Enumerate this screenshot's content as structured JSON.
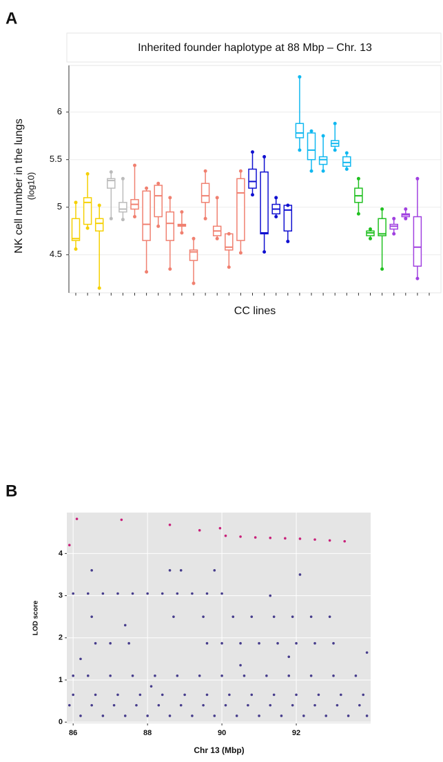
{
  "chart_data": [
    {
      "type": "box",
      "panel": "A",
      "title": "Inherited founder haplotype at 88 Mbp – Chr. 13",
      "ylabel": "NK cell number in the lungs",
      "ylabel2": "(log10)",
      "xlabel": "CC lines",
      "ylim": [
        4.1,
        6.49
      ],
      "yticks": [
        4.5,
        5,
        5.5,
        6
      ],
      "grid": true,
      "boxes": [
        {
          "color": "#f5d000",
          "low": 4.56,
          "q1": 4.65,
          "median": 4.67,
          "q3": 4.88,
          "high": 5.05
        },
        {
          "color": "#f5d000",
          "low": 4.78,
          "q1": 4.82,
          "median": 5.05,
          "q3": 5.1,
          "high": 5.35
        },
        {
          "color": "#f5d000",
          "low": 4.15,
          "q1": 4.75,
          "median": 4.83,
          "q3": 4.88,
          "high": 5.02
        },
        {
          "color": "#bbbbbb",
          "low": 4.88,
          "q1": 5.2,
          "median": 5.28,
          "q3": 5.3,
          "high": 5.37
        },
        {
          "color": "#bbbbbb",
          "low": 4.87,
          "q1": 4.95,
          "median": 4.98,
          "q3": 5.05,
          "high": 5.3
        },
        {
          "color": "#f08070",
          "low": 4.9,
          "q1": 4.98,
          "median": 5.03,
          "q3": 5.08,
          "high": 5.44
        },
        {
          "color": "#f08070",
          "low": 4.32,
          "q1": 4.65,
          "median": 4.82,
          "q3": 5.17,
          "high": 5.2
        },
        {
          "color": "#f08070",
          "low": 4.8,
          "q1": 4.9,
          "median": 5.12,
          "q3": 5.23,
          "high": 5.25
        },
        {
          "color": "#f08070",
          "low": 4.35,
          "q1": 4.65,
          "median": 4.83,
          "q3": 4.95,
          "high": 5.1
        },
        {
          "color": "#f08070",
          "low": 4.73,
          "q1": 4.8,
          "median": 4.81,
          "q3": 4.82,
          "high": 4.95
        },
        {
          "color": "#f08070",
          "low": 4.2,
          "q1": 4.44,
          "median": 4.53,
          "q3": 4.55,
          "high": 4.67
        },
        {
          "color": "#f08070",
          "low": 4.88,
          "q1": 5.05,
          "median": 5.12,
          "q3": 5.25,
          "high": 5.38
        },
        {
          "color": "#f08070",
          "low": 4.67,
          "q1": 4.7,
          "median": 4.75,
          "q3": 4.8,
          "high": 5.1
        },
        {
          "color": "#f08070",
          "low": 4.37,
          "q1": 4.55,
          "median": 4.58,
          "q3": 4.72,
          "high": 4.72
        },
        {
          "color": "#f08070",
          "low": 4.52,
          "q1": 4.65,
          "median": 5.15,
          "q3": 5.3,
          "high": 5.38
        },
        {
          "color": "#1010d0",
          "low": 5.13,
          "q1": 5.2,
          "median": 5.27,
          "q3": 5.4,
          "high": 5.58
        },
        {
          "color": "#1010d0",
          "low": 4.53,
          "q1": 4.72,
          "median": 4.73,
          "q3": 5.37,
          "high": 5.53
        },
        {
          "color": "#1010d0",
          "low": 4.9,
          "q1": 4.93,
          "median": 4.98,
          "q3": 5.03,
          "high": 5.1
        },
        {
          "color": "#1010d0",
          "low": 4.64,
          "q1": 4.75,
          "median": 4.97,
          "q3": 5.02,
          "high": 5.02
        },
        {
          "color": "#10b8f0",
          "low": 5.6,
          "q1": 5.73,
          "median": 5.78,
          "q3": 5.88,
          "high": 6.37
        },
        {
          "color": "#10b8f0",
          "low": 5.38,
          "q1": 5.5,
          "median": 5.6,
          "q3": 5.78,
          "high": 5.8
        },
        {
          "color": "#10b8f0",
          "low": 5.38,
          "q1": 5.45,
          "median": 5.5,
          "q3": 5.53,
          "high": 5.75
        },
        {
          "color": "#10b8f0",
          "low": 5.6,
          "q1": 5.64,
          "median": 5.67,
          "q3": 5.7,
          "high": 5.88
        },
        {
          "color": "#10b8f0",
          "low": 5.4,
          "q1": 5.43,
          "median": 5.47,
          "q3": 5.53,
          "high": 5.57
        },
        {
          "color": "#20c020",
          "low": 4.93,
          "q1": 5.05,
          "median": 5.12,
          "q3": 5.2,
          "high": 5.3
        },
        {
          "color": "#20c020",
          "low": 4.67,
          "q1": 4.7,
          "median": 4.73,
          "q3": 4.75,
          "high": 4.77
        },
        {
          "color": "#20c020",
          "low": 4.35,
          "q1": 4.7,
          "median": 4.72,
          "q3": 4.88,
          "high": 4.98
        },
        {
          "color": "#a040e0",
          "low": 4.72,
          "q1": 4.77,
          "median": 4.8,
          "q3": 4.82,
          "high": 4.88
        },
        {
          "color": "#a040e0",
          "low": 4.88,
          "q1": 4.9,
          "median": 4.92,
          "q3": 4.93,
          "high": 4.98
        },
        {
          "color": "#a040e0",
          "low": 4.25,
          "q1": 4.38,
          "median": 4.58,
          "q3": 4.9,
          "high": 5.3
        }
      ]
    },
    {
      "type": "scatter",
      "panel": "B",
      "xlabel": "Chr 13 (Mbp)",
      "ylabel": "LOD score",
      "xlim": [
        85.83,
        94
      ],
      "ylim": [
        -0.03,
        4.97
      ],
      "xticks": [
        86,
        88,
        90,
        92
      ],
      "yticks": [
        0,
        1,
        2,
        3,
        4
      ],
      "grid": true,
      "series": [
        {
          "color": "#c8207a",
          "x": [
            85.9,
            86.1,
            87.3,
            88.6,
            89.4,
            89.95,
            90.1,
            90.5,
            90.9,
            91.3,
            91.7,
            92.1,
            92.5,
            92.9,
            93.3
          ],
          "y": [
            4.2,
            4.82,
            4.8,
            4.68,
            4.55,
            4.6,
            4.42,
            4.4,
            4.38,
            4.37,
            4.36,
            4.35,
            4.33,
            4.31,
            4.29
          ]
        },
        {
          "color": "#463c8c",
          "x": [
            86.0,
            86.4,
            86.8,
            87.2,
            87.6,
            88.0,
            88.4,
            88.8,
            89.2,
            89.6,
            90.0,
            86.5,
            88.6,
            88.9,
            89.8,
            86.5,
            88.7,
            89.5,
            90.3,
            90.8,
            91.4,
            91.9,
            92.4,
            92.9,
            86.6,
            87.0,
            87.5,
            89.6,
            90.0,
            90.5,
            91.0,
            91.5,
            92.0,
            92.5,
            93.0,
            86.0,
            86.4,
            87.0,
            87.6,
            88.2,
            88.8,
            89.4,
            90.0,
            90.6,
            91.2,
            91.8,
            92.4,
            93.0,
            93.6,
            86.0,
            86.6,
            87.2,
            87.8,
            88.4,
            89.0,
            89.6,
            90.2,
            90.8,
            91.4,
            92.0,
            92.6,
            93.2,
            93.8,
            85.9,
            86.5,
            87.1,
            87.7,
            88.3,
            88.9,
            89.5,
            90.1,
            90.7,
            91.3,
            91.9,
            92.5,
            93.1,
            93.7,
            86.2,
            86.8,
            87.4,
            88.0,
            88.6,
            89.2,
            89.8,
            90.4,
            91.0,
            91.6,
            92.2,
            92.8,
            93.4,
            93.9,
            87.4,
            92.1,
            91.3,
            93.9,
            86.2,
            90.5,
            91.8,
            88.1
          ],
          "y": [
            3.05,
            3.05,
            3.05,
            3.05,
            3.05,
            3.05,
            3.05,
            3.05,
            3.05,
            3.05,
            3.05,
            3.6,
            3.6,
            3.6,
            3.6,
            2.5,
            2.5,
            2.5,
            2.5,
            2.5,
            2.5,
            2.5,
            2.5,
            2.5,
            1.87,
            1.87,
            1.87,
            1.87,
            1.87,
            1.87,
            1.87,
            1.87,
            1.87,
            1.87,
            1.87,
            1.1,
            1.1,
            1.1,
            1.1,
            1.1,
            1.1,
            1.1,
            1.1,
            1.1,
            1.1,
            1.1,
            1.1,
            1.1,
            1.1,
            0.65,
            0.65,
            0.65,
            0.65,
            0.65,
            0.65,
            0.65,
            0.65,
            0.65,
            0.65,
            0.65,
            0.65,
            0.65,
            0.65,
            0.4,
            0.4,
            0.4,
            0.4,
            0.4,
            0.4,
            0.4,
            0.4,
            0.4,
            0.4,
            0.4,
            0.4,
            0.4,
            0.4,
            0.15,
            0.15,
            0.15,
            0.15,
            0.15,
            0.15,
            0.15,
            0.15,
            0.15,
            0.15,
            0.15,
            0.15,
            0.15,
            0.15,
            2.3,
            3.5,
            3.0,
            1.65,
            1.5,
            1.35,
            1.55,
            0.85
          ]
        }
      ]
    }
  ]
}
